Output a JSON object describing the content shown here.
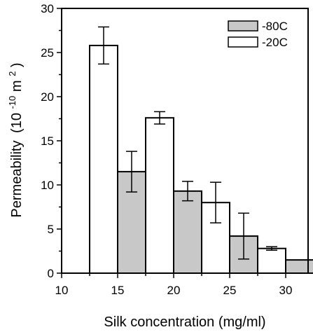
{
  "chart_data": {
    "type": "bar",
    "xlabel": "Silk concentration (mg/ml)",
    "ylabel": "Permeability",
    "ylabel_tail": "(10",
    "ylabel_exp1": "-10",
    "ylabel_unit": " m",
    "ylabel_exp2": "2",
    "ylabel_close": ")",
    "xlim": [
      10,
      32
    ],
    "ylim": [
      0,
      30
    ],
    "xticks": [
      10,
      15,
      20,
      25,
      30
    ],
    "yticks": [
      0,
      5,
      10,
      15,
      20,
      25,
      30
    ],
    "bar_width": 2.5,
    "legend_position": "top-right",
    "series": [
      {
        "name": "-80C",
        "fill": "#c8c8c8",
        "x": [
          16.25,
          21.25,
          26.25,
          31.25
        ],
        "values": [
          11.5,
          9.3,
          4.2,
          1.5
        ],
        "errors": [
          2.3,
          1.1,
          2.6,
          null
        ]
      },
      {
        "name": "-20C",
        "fill": "#ffffff",
        "x": [
          13.75,
          18.75,
          23.75,
          28.75
        ],
        "values": [
          25.8,
          17.6,
          8.0,
          2.8
        ],
        "errors": [
          2.1,
          0.7,
          2.3,
          0.2
        ]
      }
    ]
  }
}
